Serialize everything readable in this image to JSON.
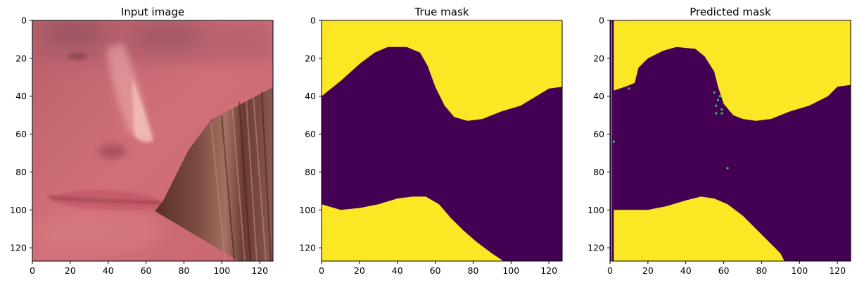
{
  "figure": {
    "background": "#ffffff"
  },
  "colors": {
    "purple": "#440154",
    "yellow": "#fde725",
    "speck": "#35b779"
  },
  "chart_data": [
    {
      "type": "image",
      "title": "Input image",
      "xlim": [
        0,
        127
      ],
      "ylim": [
        127,
        0
      ],
      "xticks": [
        0,
        20,
        40,
        60,
        80,
        100,
        120
      ],
      "yticks": [
        0,
        20,
        40,
        60,
        80,
        100,
        120
      ],
      "content": "photo of a blended face crop: skin, nose, lips, and dark hair region on the right",
      "boundary": [
        [
          0,
          127
        ],
        [
          65,
          110
        ],
        [
          70,
          96
        ],
        [
          95,
          58
        ],
        [
          126,
          35
        ]
      ]
    },
    {
      "type": "heatmap",
      "title": "True mask",
      "xlim": [
        0,
        127
      ],
      "ylim": [
        127,
        0
      ],
      "xticks": [
        0,
        20,
        40,
        60,
        80,
        100,
        120
      ],
      "yticks": [
        0,
        20,
        40,
        60,
        80,
        100,
        120
      ],
      "classes": [
        "foreground (purple)",
        "background (yellow)"
      ],
      "upper_boundary": [
        [
          0,
          40
        ],
        [
          10,
          32
        ],
        [
          20,
          23
        ],
        [
          28,
          17
        ],
        [
          35,
          14
        ],
        [
          45,
          14
        ],
        [
          52,
          17
        ],
        [
          56,
          24
        ],
        [
          60,
          35
        ],
        [
          65,
          45
        ],
        [
          70,
          51
        ],
        [
          77,
          53
        ],
        [
          85,
          52
        ],
        [
          95,
          48
        ],
        [
          105,
          45
        ],
        [
          115,
          39
        ],
        [
          120,
          36
        ],
        [
          127,
          35
        ]
      ],
      "lower_boundary": [
        [
          0,
          97
        ],
        [
          10,
          100
        ],
        [
          20,
          99
        ],
        [
          30,
          97
        ],
        [
          40,
          94
        ],
        [
          48,
          93
        ],
        [
          55,
          93
        ],
        [
          62,
          97
        ],
        [
          68,
          104
        ],
        [
          75,
          111
        ],
        [
          82,
          117
        ],
        [
          90,
          123
        ],
        [
          96,
          127
        ]
      ]
    },
    {
      "type": "heatmap",
      "title": "Predicted mask",
      "xlim": [
        0,
        127
      ],
      "ylim": [
        127,
        0
      ],
      "xticks": [
        0,
        20,
        40,
        60,
        80,
        100,
        120
      ],
      "yticks": [
        0,
        20,
        40,
        60,
        80,
        100,
        120
      ],
      "classes": [
        "foreground (purple)",
        "background (yellow)"
      ],
      "left_strip_x": 2,
      "upper_boundary": [
        [
          2,
          37
        ],
        [
          8,
          35
        ],
        [
          13,
          33
        ],
        [
          15,
          25
        ],
        [
          20,
          20
        ],
        [
          28,
          16
        ],
        [
          35,
          14
        ],
        [
          45,
          15
        ],
        [
          50,
          19
        ],
        [
          55,
          27
        ],
        [
          57,
          35
        ],
        [
          60,
          44
        ],
        [
          65,
          50
        ],
        [
          70,
          52
        ],
        [
          77,
          53
        ],
        [
          85,
          52
        ],
        [
          95,
          48
        ],
        [
          105,
          45
        ],
        [
          115,
          40
        ],
        [
          120,
          35
        ],
        [
          127,
          34
        ]
      ],
      "lower_boundary": [
        [
          2,
          100
        ],
        [
          10,
          100
        ],
        [
          20,
          100
        ],
        [
          30,
          98
        ],
        [
          40,
          95
        ],
        [
          48,
          93
        ],
        [
          55,
          94
        ],
        [
          62,
          97
        ],
        [
          70,
          103
        ],
        [
          78,
          111
        ],
        [
          85,
          118
        ],
        [
          90,
          123
        ],
        [
          92,
          127
        ]
      ],
      "specks": [
        [
          55,
          38
        ],
        [
          58,
          40
        ],
        [
          56,
          45
        ],
        [
          59,
          47
        ],
        [
          56,
          49
        ],
        [
          59,
          49
        ],
        [
          57,
          42
        ],
        [
          2,
          64
        ],
        [
          62,
          78
        ],
        [
          10,
          36
        ]
      ]
    }
  ]
}
